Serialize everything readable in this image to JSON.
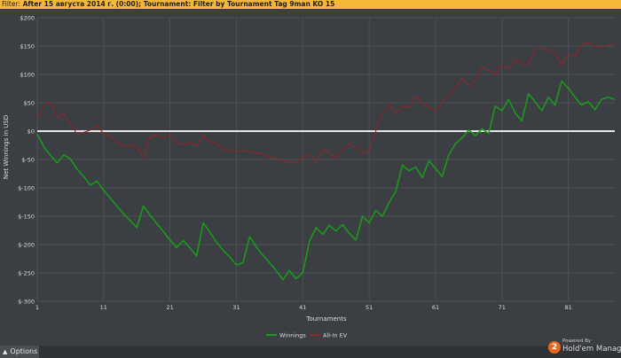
{
  "filter_bar": {
    "label": "Filter:",
    "text": "After 15 августа 2014 г. (0:00);  Tournament: Filter by Tournament Tag  9man KO 15"
  },
  "chart_data": {
    "type": "line",
    "xlabel": "Tournaments",
    "ylabel": "Net Winnings in USD",
    "x_ticks": [
      1,
      11,
      21,
      31,
      41,
      51,
      61,
      71,
      81
    ],
    "y_ticks": [
      -300,
      -250,
      -200,
      -150,
      -100,
      -50,
      0,
      50,
      100,
      150,
      200
    ],
    "y_tick_labels": [
      "$-300",
      "$-250",
      "$-200",
      "$-150",
      "$-100",
      "$-50",
      "$0",
      "$50",
      "$100",
      "$150",
      "$200"
    ],
    "xlim": [
      1,
      88
    ],
    "ylim": [
      -300,
      200
    ],
    "grid": true,
    "legend_position": "bottom-center",
    "colors": {
      "winnings": "#1a9a1a",
      "allin_ev": "#8a2a2a",
      "zero_line": "#e6e6e6",
      "grid": "#4d5155",
      "axis_text": "#dcdcdc"
    },
    "series": [
      {
        "name": "Winnings",
        "color": "#1a9a1a",
        "x": [
          1,
          2,
          3,
          4,
          5,
          6,
          7,
          8,
          9,
          10,
          11,
          12,
          13,
          14,
          15,
          16,
          17,
          18,
          19,
          20,
          21,
          22,
          23,
          24,
          25,
          26,
          27,
          28,
          29,
          30,
          31,
          32,
          33,
          34,
          35,
          36,
          37,
          38,
          39,
          40,
          41,
          42,
          43,
          44,
          45,
          46,
          47,
          48,
          49,
          50,
          51,
          52,
          53,
          54,
          55,
          56,
          57,
          58,
          59,
          60,
          61,
          62,
          63,
          64,
          65,
          66,
          67,
          68,
          69,
          70,
          71,
          72,
          73,
          74,
          75,
          76,
          77,
          78,
          79,
          80,
          81,
          82,
          83,
          84,
          85,
          86,
          87,
          88
        ],
        "y": [
          -5,
          -28,
          -43,
          -56,
          -42,
          -49,
          -67,
          -80,
          -95,
          -88,
          -104,
          -118,
          -132,
          -146,
          -158,
          -170,
          -132,
          -148,
          -163,
          -177,
          -192,
          -205,
          -193,
          -206,
          -220,
          -162,
          -178,
          -196,
          -210,
          -222,
          -236,
          -232,
          -186,
          -204,
          -219,
          -232,
          -246,
          -262,
          -246,
          -260,
          -250,
          -194,
          -170,
          -182,
          -166,
          -176,
          -165,
          -180,
          -192,
          -150,
          -162,
          -140,
          -150,
          -126,
          -106,
          -60,
          -70,
          -63,
          -82,
          -52,
          -66,
          -80,
          -42,
          -22,
          -12,
          2,
          -8,
          4,
          -4,
          44,
          36,
          56,
          32,
          18,
          66,
          52,
          36,
          60,
          46,
          88,
          76,
          60,
          46,
          52,
          38,
          56,
          60,
          56
        ]
      },
      {
        "name": "All-In EV",
        "color": "#8a2a2a",
        "x": [
          1,
          2,
          3,
          4,
          5,
          6,
          7,
          8,
          9,
          10,
          11,
          12,
          13,
          14,
          15,
          16,
          17,
          18,
          19,
          20,
          21,
          22,
          23,
          24,
          25,
          26,
          27,
          28,
          29,
          30,
          31,
          32,
          33,
          34,
          35,
          36,
          37,
          38,
          39,
          40,
          41,
          42,
          43,
          44,
          45,
          46,
          47,
          48,
          49,
          50,
          51,
          52,
          53,
          54,
          55,
          56,
          57,
          58,
          59,
          60,
          61,
          62,
          63,
          64,
          65,
          66,
          67,
          68,
          69,
          70,
          71,
          72,
          73,
          74,
          75,
          76,
          77,
          78,
          79,
          80,
          81,
          82,
          83,
          84,
          85,
          86,
          87,
          88
        ],
        "y": [
          22,
          44,
          52,
          24,
          30,
          12,
          -5,
          -2,
          2,
          10,
          -4,
          -8,
          -20,
          -26,
          -24,
          -28,
          -46,
          -10,
          -6,
          -12,
          -8,
          -20,
          -24,
          -20,
          -26,
          -8,
          -18,
          -22,
          -32,
          -34,
          -36,
          -34,
          -36,
          -38,
          -40,
          -46,
          -48,
          -52,
          -54,
          -56,
          -46,
          -40,
          -56,
          -30,
          -38,
          -48,
          -32,
          -22,
          -30,
          -38,
          -36,
          0,
          32,
          46,
          30,
          44,
          42,
          62,
          50,
          42,
          36,
          50,
          64,
          76,
          94,
          80,
          90,
          114,
          108,
          100,
          116,
          110,
          128,
          118,
          118,
          146,
          146,
          144,
          138,
          116,
          136,
          132,
          152,
          156,
          150,
          148,
          152,
          154
        ]
      }
    ]
  },
  "legend": [
    {
      "label": "Winnings",
      "color": "#1a9a1a"
    },
    {
      "label": "All-In EV",
      "color": "#8a2a2a"
    }
  ],
  "bottom_bar": {
    "options_label": "Options",
    "brand_badge": "2",
    "brand_tagline": "Powered By",
    "brand_name": "Hold'em Manager"
  }
}
